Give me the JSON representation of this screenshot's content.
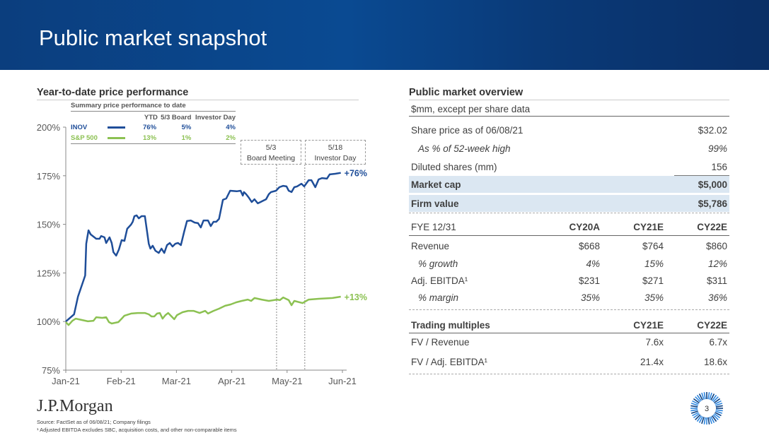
{
  "header": {
    "title": "Public market snapshot"
  },
  "left": {
    "title": "Year-to-date price performance"
  },
  "summary": {
    "title": "Summary price performance to date",
    "columns": [
      "YTD",
      "5/3 Board",
      "Investor Day"
    ],
    "rows": [
      {
        "name": "INOV",
        "values": [
          "76%",
          "5%",
          "4%"
        ],
        "color": "#1f4e99"
      },
      {
        "name": "S&P 500",
        "values": [
          "13%",
          "1%",
          "2%"
        ],
        "color": "#8cc152"
      }
    ]
  },
  "events": [
    {
      "date": "5/3",
      "label": "Board Meeting",
      "x": 3.81
    },
    {
      "date": "5/18",
      "label": "Investor Day",
      "x": 4.32
    }
  ],
  "chart_data": {
    "type": "line",
    "title": "Year-to-date price performance",
    "ylim": [
      75,
      200
    ],
    "xlim": [
      0,
      5
    ],
    "y_ticks": [
      "75%",
      "100%",
      "125%",
      "150%",
      "175%",
      "200%"
    ],
    "y_tick_values": [
      75,
      100,
      125,
      150,
      175,
      200
    ],
    "x_ticks": [
      "Jan-21",
      "Feb-21",
      "Mar-21",
      "Apr-21",
      "May-21",
      "Jun-21"
    ],
    "end_labels": {
      "INOV": "+76%",
      "S&P 500": "+13%"
    },
    "series": [
      {
        "name": "INOV",
        "color": "#1f4e99",
        "points": [
          [
            0,
            100
          ],
          [
            0.15,
            103.7
          ],
          [
            0.22,
            112.8
          ],
          [
            0.35,
            123.7
          ],
          [
            0.37,
            140
          ],
          [
            0.41,
            146.9
          ],
          [
            0.45,
            144.8
          ],
          [
            0.55,
            142.6
          ],
          [
            0.61,
            142.6
          ],
          [
            0.64,
            144
          ],
          [
            0.7,
            143.3
          ],
          [
            0.73,
            140.4
          ],
          [
            0.79,
            143.3
          ],
          [
            0.83,
            140.4
          ],
          [
            0.86,
            135.7
          ],
          [
            0.91,
            133.9
          ],
          [
            0.96,
            137.1
          ],
          [
            1.01,
            141.9
          ],
          [
            1.06,
            141.5
          ],
          [
            1.11,
            147.7
          ],
          [
            1.18,
            149.9
          ],
          [
            1.21,
            151.3
          ],
          [
            1.24,
            154.2
          ],
          [
            1.28,
            154.6
          ],
          [
            1.32,
            153.1
          ],
          [
            1.37,
            154.2
          ],
          [
            1.43,
            154.2
          ],
          [
            1.5,
            140
          ],
          [
            1.53,
            137.5
          ],
          [
            1.57,
            139
          ],
          [
            1.62,
            136.4
          ],
          [
            1.68,
            135.3
          ],
          [
            1.73,
            137.5
          ],
          [
            1.78,
            135.3
          ],
          [
            1.83,
            139.3
          ],
          [
            1.88,
            140.4
          ],
          [
            1.93,
            138.6
          ],
          [
            1.98,
            140
          ],
          [
            2.03,
            140.4
          ],
          [
            2.08,
            139.3
          ],
          [
            2.14,
            146.2
          ],
          [
            2.19,
            151.7
          ],
          [
            2.26,
            152
          ],
          [
            2.33,
            150.9
          ],
          [
            2.39,
            150.6
          ],
          [
            2.44,
            148.4
          ],
          [
            2.49,
            152
          ],
          [
            2.57,
            152
          ],
          [
            2.62,
            149.1
          ],
          [
            2.67,
            151.3
          ],
          [
            2.72,
            151.3
          ],
          [
            2.77,
            152.8
          ],
          [
            2.84,
            162.6
          ],
          [
            2.9,
            163.3
          ],
          [
            2.97,
            167.3
          ],
          [
            3.09,
            167
          ],
          [
            3.16,
            167.3
          ],
          [
            3.2,
            164.8
          ],
          [
            3.22,
            166.6
          ],
          [
            3.26,
            165.5
          ],
          [
            3.31,
            163.7
          ],
          [
            3.36,
            161.5
          ],
          [
            3.41,
            162.9
          ],
          [
            3.47,
            160.8
          ],
          [
            3.52,
            161.5
          ],
          [
            3.57,
            162.2
          ],
          [
            3.62,
            162.9
          ],
          [
            3.67,
            165.5
          ],
          [
            3.71,
            166.6
          ],
          [
            3.8,
            167.3
          ],
          [
            3.86,
            169.1
          ],
          [
            3.93,
            169.8
          ],
          [
            3.99,
            169.5
          ],
          [
            4.03,
            167.3
          ],
          [
            4.08,
            166.6
          ],
          [
            4.13,
            169.1
          ],
          [
            4.18,
            169.5
          ],
          [
            4.26,
            170.9
          ],
          [
            4.31,
            169.5
          ],
          [
            4.39,
            172.7
          ],
          [
            4.44,
            172.7
          ],
          [
            4.51,
            169.1
          ],
          [
            4.57,
            173.1
          ],
          [
            4.63,
            173.8
          ],
          [
            4.72,
            173.5
          ],
          [
            4.77,
            175.7
          ],
          [
            4.87,
            176
          ],
          [
            4.97,
            176.5
          ]
        ]
      },
      {
        "name": "S&P 500",
        "color": "#8cc152",
        "points": [
          [
            0,
            99.7
          ],
          [
            0.05,
            98.2
          ],
          [
            0.12,
            100.4
          ],
          [
            0.18,
            101.5
          ],
          [
            0.29,
            100.8
          ],
          [
            0.4,
            100.1
          ],
          [
            0.5,
            100.4
          ],
          [
            0.55,
            102.2
          ],
          [
            0.66,
            101.9
          ],
          [
            0.73,
            102.2
          ],
          [
            0.78,
            99.7
          ],
          [
            0.83,
            99
          ],
          [
            0.95,
            99.7
          ],
          [
            1.01,
            101.5
          ],
          [
            1.06,
            103
          ],
          [
            1.18,
            104.1
          ],
          [
            1.3,
            104.4
          ],
          [
            1.43,
            104.4
          ],
          [
            1.5,
            103.7
          ],
          [
            1.55,
            102.6
          ],
          [
            1.6,
            102.6
          ],
          [
            1.65,
            104.1
          ],
          [
            1.7,
            104.4
          ],
          [
            1.75,
            101.5
          ],
          [
            1.8,
            103.3
          ],
          [
            1.85,
            104.4
          ],
          [
            1.96,
            101.2
          ],
          [
            2.01,
            103.3
          ],
          [
            2.11,
            104.8
          ],
          [
            2.21,
            105.5
          ],
          [
            2.31,
            105.5
          ],
          [
            2.42,
            104.4
          ],
          [
            2.52,
            105.5
          ],
          [
            2.57,
            104.1
          ],
          [
            2.67,
            105.5
          ],
          [
            2.77,
            106.6
          ],
          [
            2.88,
            108.1
          ],
          [
            2.98,
            108.8
          ],
          [
            3.08,
            109.9
          ],
          [
            3.18,
            110.6
          ],
          [
            3.29,
            111.3
          ],
          [
            3.35,
            110.6
          ],
          [
            3.41,
            112.1
          ],
          [
            3.54,
            111.3
          ],
          [
            3.67,
            110.6
          ],
          [
            3.82,
            111.3
          ],
          [
            3.87,
            111
          ],
          [
            3.93,
            112.4
          ],
          [
            4.03,
            111
          ],
          [
            4.08,
            108.4
          ],
          [
            4.13,
            110.6
          ],
          [
            4.28,
            109.5
          ],
          [
            4.39,
            111.3
          ],
          [
            4.57,
            111.7
          ],
          [
            4.82,
            112.1
          ],
          [
            4.97,
            112.8
          ]
        ]
      }
    ]
  },
  "right": {
    "title": "Public market overview",
    "subtitle": "$mm, except per share data",
    "overview": [
      {
        "label": "Share price as of 06/08/21",
        "value": "$32.02"
      },
      {
        "label": "As % of 52-week high",
        "value": "99%"
      },
      {
        "label": "Diluted shares (mm)",
        "value": "156"
      },
      {
        "label": "Market cap",
        "value": "$5,000"
      },
      {
        "label": "Firm value",
        "value": "$5,786"
      }
    ],
    "fin_header": [
      "FYE 12/31",
      "CY20A",
      "CY21E",
      "CY22E"
    ],
    "fin_rows": [
      {
        "label": "Revenue",
        "values": [
          "$668",
          "$764",
          "$860"
        ]
      },
      {
        "label": "% growth",
        "values": [
          "4%",
          "15%",
          "12%"
        ]
      },
      {
        "label": "Adj. EBITDA¹",
        "values": [
          "$231",
          "$271",
          "$311"
        ]
      },
      {
        "label": "% margin",
        "values": [
          "35%",
          "35%",
          "36%"
        ]
      }
    ],
    "mult_header": [
      "Trading multiples",
      "CY21E",
      "CY22E"
    ],
    "mult_rows": [
      {
        "label": "FV / Revenue",
        "values": [
          "7.6x",
          "6.7x"
        ]
      },
      {
        "label": "FV / Adj. EBITDA¹",
        "values": [
          "21.4x",
          "18.6x"
        ]
      }
    ]
  },
  "footer": {
    "logo": "J.P.Morgan",
    "source": "Source: FactSet as of 06/08/21; Company filings",
    "note": "¹ Adjusted EBITDA excludes SBC, acquisition costs, and other non-comparable items",
    "page": "3"
  }
}
